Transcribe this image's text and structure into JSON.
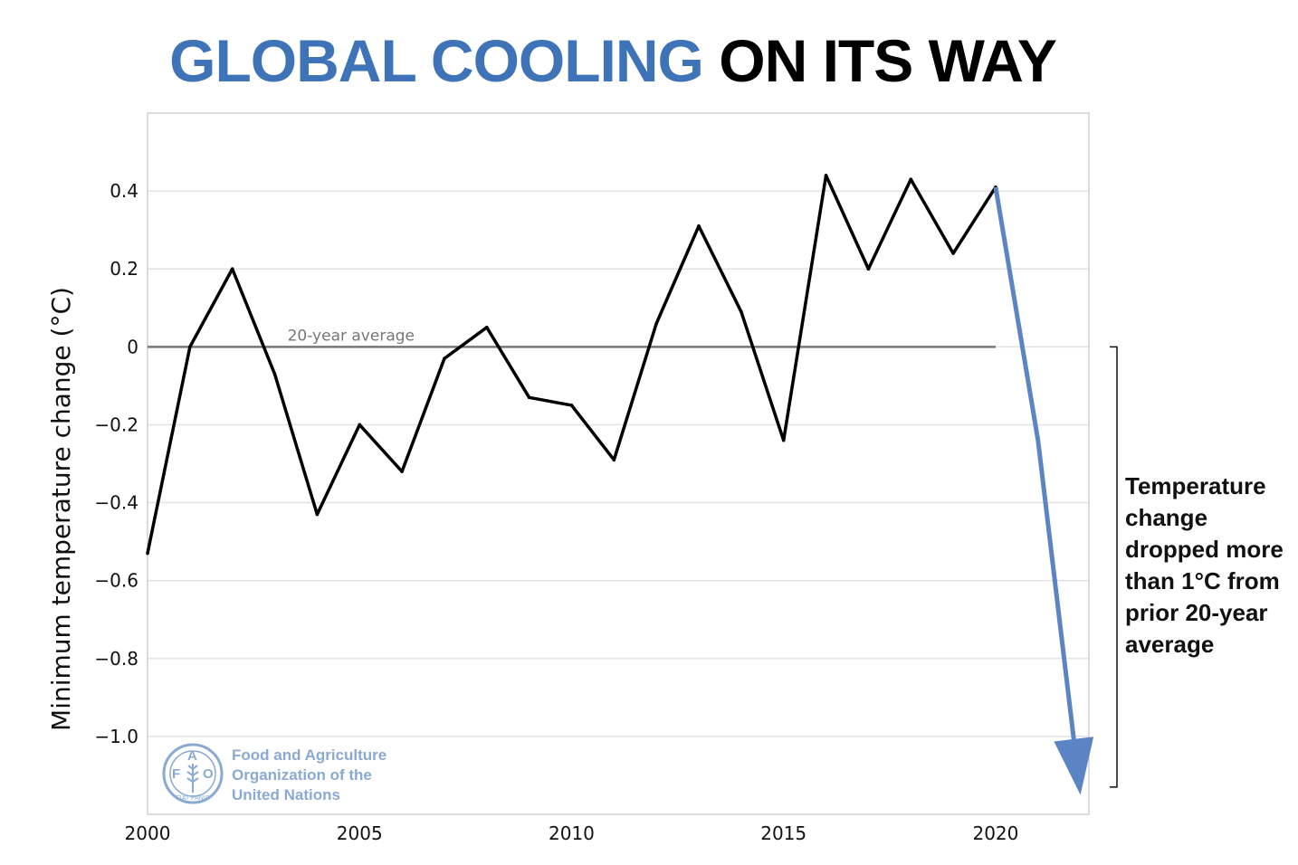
{
  "title": {
    "part1": "GLOBAL COOLING",
    "part2": "ON ITS WAY"
  },
  "chart_data": {
    "type": "line",
    "title": "GLOBAL COOLING ON ITS WAY",
    "ylabel": "Minimum temperature change (°C)",
    "xlabel": "",
    "xlim": [
      2000,
      2022.2
    ],
    "ylim": [
      -1.2,
      0.6
    ],
    "x_ticks": [
      2000,
      2005,
      2010,
      2015,
      2020
    ],
    "y_ticks": [
      0.4,
      0.2,
      0,
      -0.2,
      -0.4,
      -0.6,
      -0.8,
      -1.0
    ],
    "y_tick_labels": [
      "0.4",
      "0.2",
      "0",
      "−0.2",
      "−0.4",
      "−0.6",
      "−0.8",
      "−1.0"
    ],
    "grid": "horizontal",
    "series": [
      {
        "color": "#000000",
        "x": [
          2000,
          2001,
          2002,
          2003,
          2004,
          2005,
          2006,
          2007,
          2008,
          2009,
          2010,
          2011,
          2012,
          2013,
          2014,
          2015,
          2016,
          2017,
          2018,
          2019,
          2020
        ],
        "y": [
          -0.53,
          0.0,
          0.2,
          -0.07,
          -0.43,
          -0.2,
          -0.32,
          -0.03,
          0.05,
          -0.13,
          -0.15,
          -0.29,
          0.06,
          0.31,
          0.09,
          -0.24,
          0.44,
          0.2,
          0.43,
          0.24,
          0.41
        ]
      }
    ],
    "reference_line": {
      "label": "20-year average",
      "y": 0,
      "x_range": [
        2000,
        2020
      ],
      "color": "#777777"
    },
    "projection": {
      "color": "#5b84c4",
      "x": [
        2020,
        2021,
        2022
      ],
      "y": [
        0.41,
        -0.24,
        -1.15
      ]
    },
    "bracket": {
      "y_range": [
        0,
        -1.13
      ]
    },
    "annotation": "Temperature change dropped more than 1°C from prior 20-year average"
  },
  "annotation_lines": [
    "Temperature",
    "change",
    "dropped more",
    "than 1°C from",
    "prior 20-year",
    "average"
  ],
  "fao": {
    "lines": [
      "Food and Agriculture",
      "Organization of the",
      "United Nations"
    ],
    "logo_letters": [
      "F",
      "A",
      "O"
    ],
    "motto": "FIAT PANIS",
    "color": "#8aaad4"
  }
}
